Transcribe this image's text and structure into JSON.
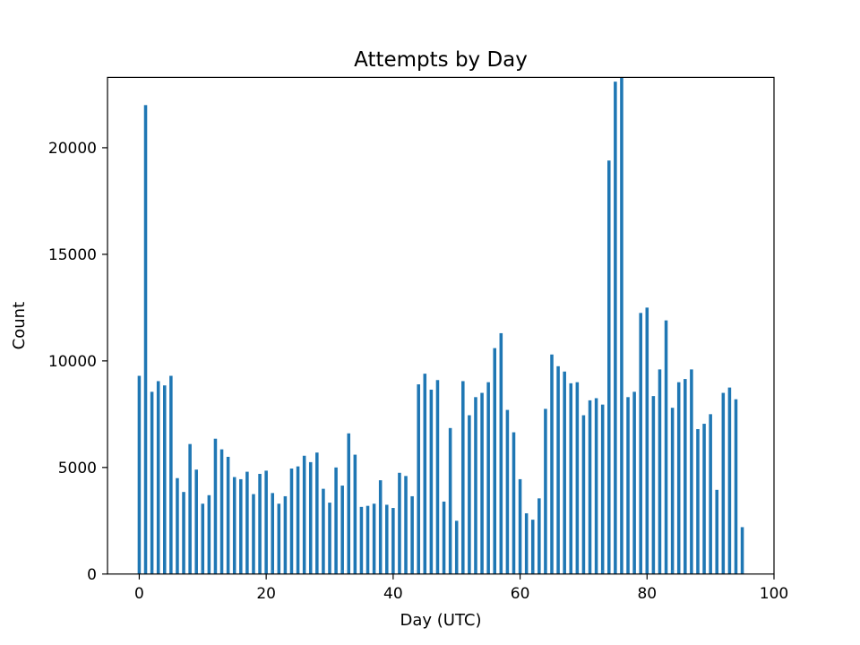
{
  "chart_data": {
    "type": "bar",
    "title": "Attempts by Day",
    "xlabel": "Day (UTC)",
    "ylabel": "Count",
    "xlim": [
      -5,
      100
    ],
    "ylim": [
      0,
      23300
    ],
    "xticks": [
      0,
      20,
      40,
      60,
      80,
      100
    ],
    "yticks": [
      0,
      5000,
      10000,
      15000,
      20000
    ],
    "grid": false,
    "bar_color": "#1f77b4",
    "x": [
      0,
      1,
      2,
      3,
      4,
      5,
      6,
      7,
      8,
      9,
      10,
      11,
      12,
      13,
      14,
      15,
      16,
      17,
      18,
      19,
      20,
      21,
      22,
      23,
      24,
      25,
      26,
      27,
      28,
      29,
      30,
      31,
      32,
      33,
      34,
      35,
      36,
      37,
      38,
      39,
      40,
      41,
      42,
      43,
      44,
      45,
      46,
      47,
      48,
      49,
      50,
      51,
      52,
      53,
      54,
      55,
      56,
      57,
      58,
      59,
      60,
      61,
      62,
      63,
      64,
      65,
      66,
      67,
      68,
      69,
      70,
      71,
      72,
      73,
      74,
      75,
      76,
      77,
      78,
      79,
      80,
      81,
      82,
      83,
      84,
      85,
      86,
      87,
      88,
      89,
      90,
      91,
      92,
      93,
      94,
      95
    ],
    "values": [
      9300,
      22000,
      8550,
      9050,
      8850,
      9300,
      4500,
      3850,
      6100,
      4900,
      3300,
      3700,
      6350,
      5850,
      5500,
      4550,
      4450,
      4800,
      3750,
      4700,
      4850,
      3800,
      3300,
      3650,
      4950,
      5050,
      5550,
      5250,
      5700,
      4000,
      3350,
      5000,
      4150,
      6600,
      5600,
      3150,
      3200,
      3300,
      4400,
      3250,
      3100,
      4750,
      4600,
      3650,
      8900,
      9400,
      8650,
      9100,
      3400,
      6850,
      2500,
      9050,
      7450,
      8300,
      8500,
      9000,
      10600,
      11300,
      7700,
      6650,
      4450,
      2850,
      2550,
      3550,
      7750,
      10300,
      9750,
      9500,
      8950,
      9000,
      7450,
      8150,
      8250,
      7950,
      19400,
      23100,
      23300,
      8300,
      8550,
      12250,
      12500,
      8350,
      9600,
      11900,
      7800,
      9000,
      9150,
      9600,
      6800,
      7050,
      7500,
      3950,
      8500,
      8750,
      8200,
      2200
    ]
  }
}
